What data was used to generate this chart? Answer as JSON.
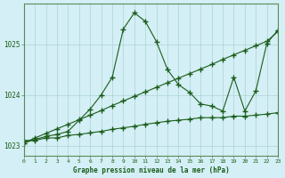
{
  "title": "Graphe pression niveau de la mer (hPa)",
  "background_color": "#d4eff5",
  "grid_color": "#aad4d4",
  "line_color": "#1a5c1a",
  "spine_color": "#5a8a5a",
  "xlim": [
    0,
    23
  ],
  "ylim": [
    1022.8,
    1025.8
  ],
  "yticks": [
    1023,
    1024,
    1025
  ],
  "xticks": [
    0,
    1,
    2,
    3,
    4,
    5,
    6,
    7,
    8,
    9,
    10,
    11,
    12,
    13,
    14,
    15,
    16,
    17,
    18,
    19,
    20,
    21,
    22,
    23
  ],
  "line1_x": [
    0,
    1,
    2,
    3,
    4,
    5,
    6,
    7,
    8,
    9,
    10,
    11,
    12,
    13,
    14,
    15,
    16,
    17,
    18,
    19,
    20,
    21,
    22,
    23
  ],
  "line1_y": [
    1023.05,
    1023.15,
    1023.24,
    1023.33,
    1023.42,
    1023.51,
    1023.6,
    1023.69,
    1023.79,
    1023.88,
    1023.97,
    1024.06,
    1024.15,
    1024.24,
    1024.33,
    1024.42,
    1024.51,
    1024.6,
    1024.7,
    1024.79,
    1024.88,
    1024.97,
    1025.06,
    1025.25
  ],
  "line2_x": [
    0,
    1,
    2,
    3,
    4,
    5,
    6,
    7,
    8,
    9,
    10,
    11,
    12,
    13,
    14,
    15,
    16,
    17,
    18,
    19,
    20,
    21,
    22,
    23
  ],
  "line2_y": [
    1023.1,
    1023.1,
    1023.15,
    1023.15,
    1023.2,
    1023.22,
    1023.25,
    1023.28,
    1023.32,
    1023.35,
    1023.38,
    1023.42,
    1023.45,
    1023.48,
    1023.5,
    1023.52,
    1023.55,
    1023.55,
    1023.55,
    1023.58,
    1023.58,
    1023.6,
    1023.62,
    1023.65
  ],
  "line3_x": [
    0,
    1,
    2,
    3,
    4,
    5,
    6,
    7,
    8,
    9,
    10,
    11,
    12,
    13,
    14,
    15,
    16,
    17,
    18,
    19,
    20,
    21,
    22,
    23
  ],
  "line3_y": [
    1023.05,
    1023.12,
    1023.18,
    1023.22,
    1023.28,
    1023.5,
    1023.72,
    1024.0,
    1024.35,
    1025.3,
    1025.62,
    1025.45,
    1025.05,
    1024.5,
    1024.2,
    1024.05,
    1023.82,
    1023.78,
    1023.68,
    1024.35,
    1023.68,
    1024.08,
    1025.02,
    1025.28
  ]
}
